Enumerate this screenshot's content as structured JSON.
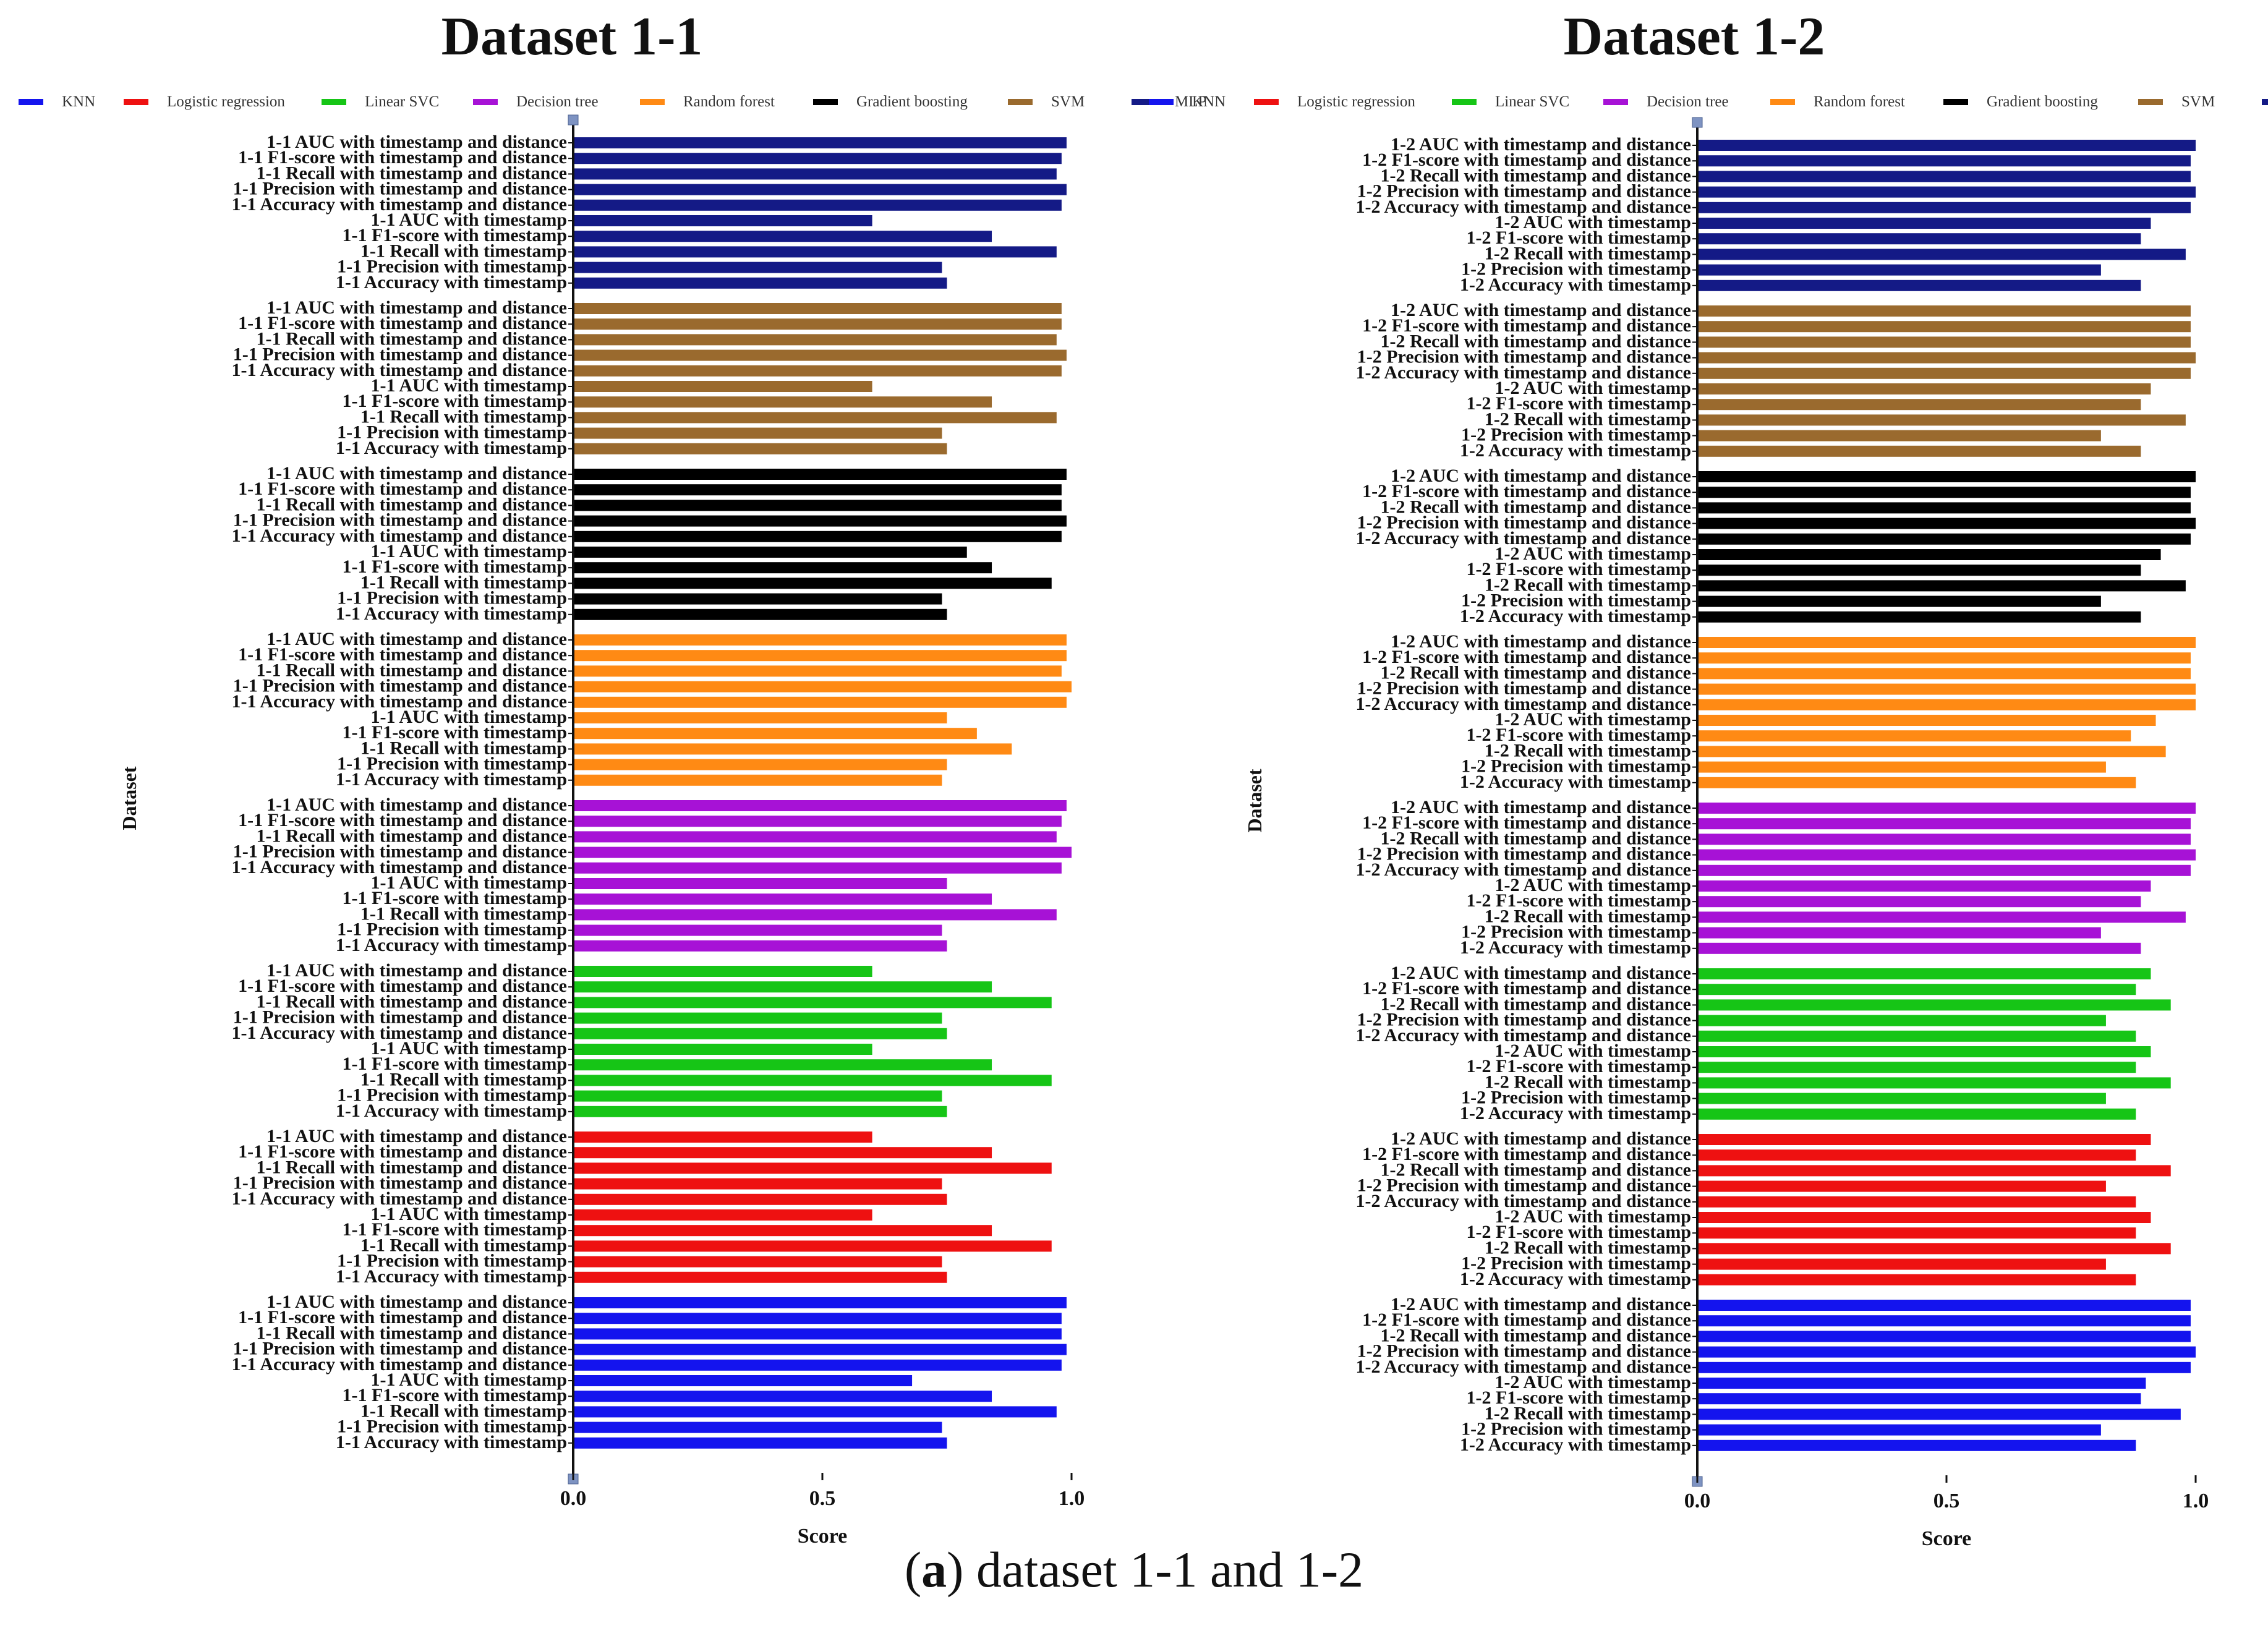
{
  "figure_caption": {
    "letter": "a",
    "text": " dataset 1-1 and 1-2"
  },
  "metric_labels": [
    "AUC with timestamp and distance",
    "F1-score with timestamp and distance",
    "Recall with timestamp and distance",
    "Precision with timestamp and distance",
    "Accuracy with timestamp and distance",
    "AUC with timestamp",
    "F1-score with timestamp",
    "Recall with timestamp",
    "Precision with timestamp",
    "Accuracy with timestamp"
  ],
  "chart_data": [
    {
      "type": "bar",
      "orientation": "horizontal",
      "title": "Dataset 1-1",
      "label_prefix": "1-1",
      "xlabel": "Score",
      "ylabel": "Dataset",
      "xlim": [
        0.0,
        1.0
      ],
      "xticks": [
        "0.0",
        "0.5",
        "1.0"
      ],
      "legend_position": "top",
      "legend": [
        {
          "name": "KNN",
          "color": "#1414ee"
        },
        {
          "name": "Logistic regression",
          "color": "#ee1111"
        },
        {
          "name": "Linear SVC",
          "color": "#16c516"
        },
        {
          "name": "Decision tree",
          "color": "#a712d6"
        },
        {
          "name": "Random forest",
          "color": "#ff8a14"
        },
        {
          "name": "Gradient boosting",
          "color": "#000000"
        },
        {
          "name": "SVM",
          "color": "#9a6a2e"
        },
        {
          "name": "MLP",
          "color": "#141a86"
        }
      ],
      "series": [
        {
          "name": "MLP",
          "color": "#141a86",
          "values": [
            0.99,
            0.98,
            0.97,
            0.99,
            0.98,
            0.6,
            0.84,
            0.97,
            0.74,
            0.75
          ]
        },
        {
          "name": "SVM",
          "color": "#9a6a2e",
          "values": [
            0.98,
            0.98,
            0.97,
            0.99,
            0.98,
            0.6,
            0.84,
            0.97,
            0.74,
            0.75
          ]
        },
        {
          "name": "Gradient boosting",
          "color": "#000000",
          "values": [
            0.99,
            0.98,
            0.98,
            0.99,
            0.98,
            0.79,
            0.84,
            0.96,
            0.74,
            0.75
          ]
        },
        {
          "name": "Random forest",
          "color": "#ff8a14",
          "values": [
            0.99,
            0.99,
            0.98,
            1.0,
            0.99,
            0.75,
            0.81,
            0.88,
            0.75,
            0.74
          ]
        },
        {
          "name": "Decision tree",
          "color": "#a712d6",
          "values": [
            0.99,
            0.98,
            0.97,
            1.0,
            0.98,
            0.75,
            0.84,
            0.97,
            0.74,
            0.75
          ]
        },
        {
          "name": "Linear SVC",
          "color": "#16c516",
          "values": [
            0.6,
            0.84,
            0.96,
            0.74,
            0.75,
            0.6,
            0.84,
            0.96,
            0.74,
            0.75
          ]
        },
        {
          "name": "Logistic regression",
          "color": "#ee1111",
          "values": [
            0.6,
            0.84,
            0.96,
            0.74,
            0.75,
            0.6,
            0.84,
            0.96,
            0.74,
            0.75
          ]
        },
        {
          "name": "KNN",
          "color": "#1414ee",
          "values": [
            0.99,
            0.98,
            0.98,
            0.99,
            0.98,
            0.68,
            0.84,
            0.97,
            0.74,
            0.75
          ]
        }
      ]
    },
    {
      "type": "bar",
      "orientation": "horizontal",
      "title": "Dataset 1-2",
      "label_prefix": "1-2",
      "xlabel": "Score",
      "ylabel": "Dataset",
      "xlim": [
        0.0,
        1.0
      ],
      "xticks": [
        "0.0",
        "0.5",
        "1.0"
      ],
      "legend_position": "top",
      "legend": [
        {
          "name": "KNN",
          "color": "#1414ee"
        },
        {
          "name": "Logistic regression",
          "color": "#ee1111"
        },
        {
          "name": "Linear SVC",
          "color": "#16c516"
        },
        {
          "name": "Decision tree",
          "color": "#a712d6"
        },
        {
          "name": "Random forest",
          "color": "#ff8a14"
        },
        {
          "name": "Gradient boosting",
          "color": "#000000"
        },
        {
          "name": "SVM",
          "color": "#9a6a2e"
        },
        {
          "name": "MLP",
          "color": "#141a86"
        }
      ],
      "series": [
        {
          "name": "MLP",
          "color": "#141a86",
          "values": [
            1.0,
            0.99,
            0.99,
            1.0,
            0.99,
            0.91,
            0.89,
            0.98,
            0.81,
            0.89
          ]
        },
        {
          "name": "SVM",
          "color": "#9a6a2e",
          "values": [
            0.99,
            0.99,
            0.99,
            1.0,
            0.99,
            0.91,
            0.89,
            0.98,
            0.81,
            0.89
          ]
        },
        {
          "name": "Gradient boosting",
          "color": "#000000",
          "values": [
            1.0,
            0.99,
            0.99,
            1.0,
            0.99,
            0.93,
            0.89,
            0.98,
            0.81,
            0.89
          ]
        },
        {
          "name": "Random forest",
          "color": "#ff8a14",
          "values": [
            1.0,
            0.99,
            0.99,
            1.0,
            1.0,
            0.92,
            0.87,
            0.94,
            0.82,
            0.88
          ]
        },
        {
          "name": "Decision tree",
          "color": "#a712d6",
          "values": [
            1.0,
            0.99,
            0.99,
            1.0,
            0.99,
            0.91,
            0.89,
            0.98,
            0.81,
            0.89
          ]
        },
        {
          "name": "Linear SVC",
          "color": "#16c516",
          "values": [
            0.91,
            0.88,
            0.95,
            0.82,
            0.88,
            0.91,
            0.88,
            0.95,
            0.82,
            0.88
          ]
        },
        {
          "name": "Logistic regression",
          "color": "#ee1111",
          "values": [
            0.91,
            0.88,
            0.95,
            0.82,
            0.88,
            0.91,
            0.88,
            0.95,
            0.82,
            0.88
          ]
        },
        {
          "name": "KNN",
          "color": "#1414ee",
          "values": [
            0.99,
            0.99,
            0.99,
            1.0,
            0.99,
            0.9,
            0.89,
            0.97,
            0.81,
            0.88
          ]
        }
      ]
    }
  ]
}
